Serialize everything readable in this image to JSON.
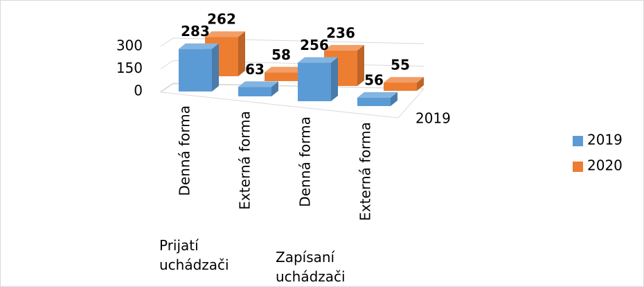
{
  "chart_data": {
    "type": "bar3d",
    "categories": [
      "Denná forma",
      "Externá forma",
      "Denná forma",
      "Externá forma"
    ],
    "groups": [
      "Prijatí uchádzači",
      "Zapísaní uchádzači"
    ],
    "depth_labels": [
      "2019"
    ],
    "series": [
      {
        "name": "2019",
        "color": "#5b9bd5",
        "values": [
          283,
          63,
          256,
          56
        ]
      },
      {
        "name": "2020",
        "color": "#ed7d31",
        "values": [
          262,
          58,
          236,
          55
        ]
      }
    ],
    "ylim": [
      0,
      300
    ],
    "yticks": [
      0,
      150,
      300
    ],
    "grid": true,
    "legend": "right"
  }
}
